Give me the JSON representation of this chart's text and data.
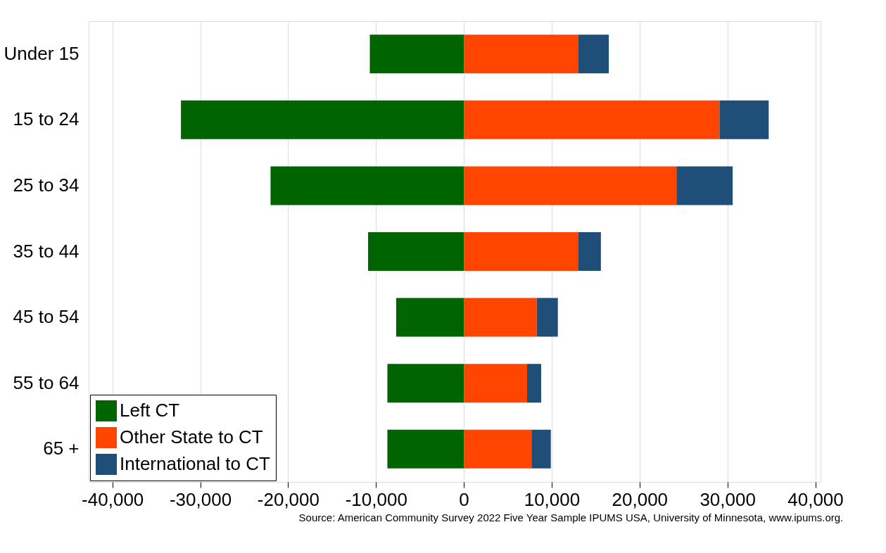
{
  "chart_data": {
    "type": "bar",
    "orientation": "horizontal",
    "stacked": true,
    "categories": [
      "Under 15",
      "15 to 24",
      "25 to 34",
      "35 to 44",
      "45 to 54",
      "55 to 64",
      "65 +"
    ],
    "series": [
      {
        "name": "Left CT",
        "color": "#006400",
        "values": [
          -10700,
          -32200,
          -22000,
          -10900,
          -7700,
          -8700,
          -8700
        ]
      },
      {
        "name": "Other State to CT",
        "color": "#ff4500",
        "values": [
          13000,
          29100,
          24200,
          13000,
          8300,
          7200,
          7700
        ]
      },
      {
        "name": "International to CT",
        "color": "#1f4e79",
        "values": [
          3500,
          5600,
          6400,
          2600,
          2400,
          1600,
          2200
        ]
      }
    ],
    "xlim": [
      -42700,
      40600
    ],
    "xticks": [
      {
        "value": -40000,
        "label": "-40,000"
      },
      {
        "value": -30000,
        "label": "-30,000"
      },
      {
        "value": -20000,
        "label": "-20,000"
      },
      {
        "value": -10000,
        "label": "-10,000"
      },
      0,
      {
        "value": 10000,
        "label": "10,000"
      },
      {
        "value": 20000,
        "label": "20,000"
      },
      {
        "value": 30000,
        "label": "30,000"
      },
      {
        "value": 40000,
        "label": "40,000"
      }
    ],
    "grid": "x",
    "legend": "bottom left",
    "annotations": [
      "Source: American Community Survey 2022 Five Year Sample IPUMS USA, University of Minnesota, www.ipums.org."
    ]
  }
}
